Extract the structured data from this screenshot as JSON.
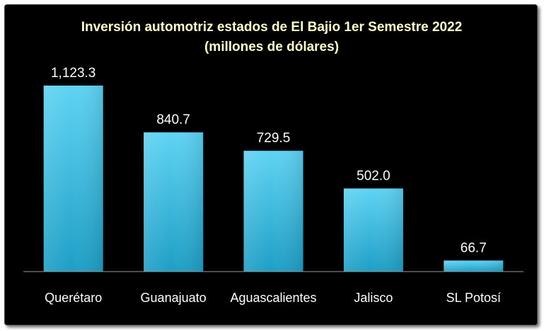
{
  "chart_data": {
    "type": "bar",
    "title": "Inversión automotriz estados de El Bajio 1er Semestre 2022",
    "subtitle": "(millones de dólares)",
    "categories": [
      "Querétaro",
      "Guanajuato",
      "Aguascalientes",
      "Jalisco",
      "SL Potosí"
    ],
    "values": [
      1123.3,
      840.7,
      729.5,
      502.0,
      66.7
    ],
    "value_labels": [
      "1,123.3",
      "840.7",
      "729.5",
      "502.0",
      "66.7"
    ],
    "xlabel": "",
    "ylabel": "",
    "ylim": [
      0,
      1123.3
    ],
    "grid": false,
    "legend": "none",
    "colors": {
      "background": "#000000",
      "bar_top": "#5FD3F3",
      "bar_bottom": "#1E9FC6",
      "title": "#FFFFC8",
      "labels": "#FFFFFF"
    }
  }
}
